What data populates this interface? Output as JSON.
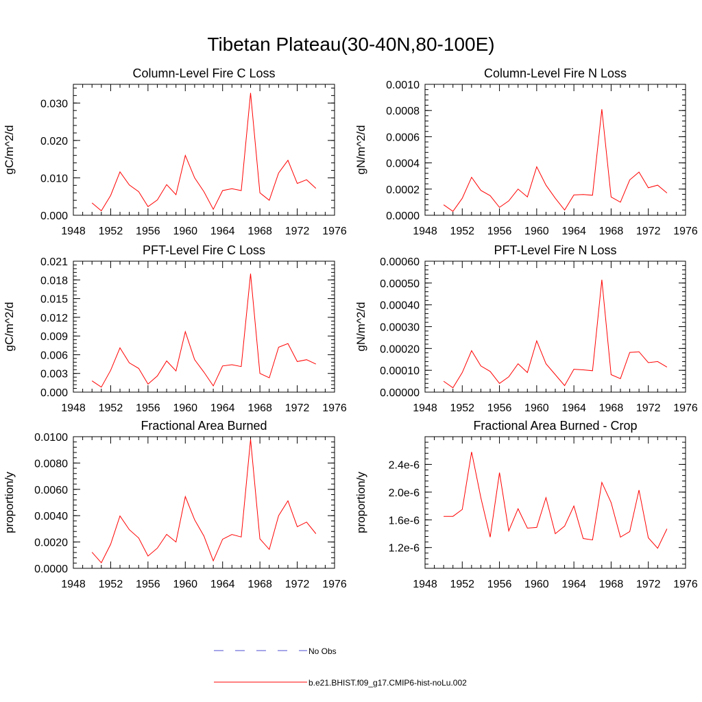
{
  "figure": {
    "title": "Tibetan Plateau(30-40N,80-100E)"
  },
  "colors": {
    "model_line": "#ff0000",
    "obs_line": "#4b4bd2",
    "axes": "#000000"
  },
  "legend": {
    "entries": [
      {
        "label": "No Obs",
        "style": "dashed",
        "color": "#4b4bd2"
      },
      {
        "label": "b.e21.BHIST.f09_g17.CMIP6-hist-noLu.002",
        "style": "solid",
        "color": "#ff0000"
      }
    ]
  },
  "chart_data": [
    {
      "type": "line",
      "title": "Column-Level Fire C Loss",
      "ylabel": "gC/m^2/d",
      "xlim": [
        1948,
        1976
      ],
      "ylim": [
        0,
        0.035
      ],
      "xticks": [
        1948,
        1952,
        1956,
        1960,
        1964,
        1968,
        1972,
        1976
      ],
      "yticks": [
        0,
        0.01,
        0.02,
        0.03
      ],
      "ytick_labels": [
        "0.000",
        "0.010",
        "0.020",
        "0.030"
      ],
      "x": [
        1950,
        1951,
        1952,
        1953,
        1954,
        1955,
        1956,
        1957,
        1958,
        1959,
        1960,
        1961,
        1962,
        1963,
        1964,
        1965,
        1966,
        1967,
        1968,
        1969,
        1970,
        1971,
        1972,
        1973,
        1974
      ],
      "series": [
        {
          "values": [
            0.0033,
            0.0012,
            0.0053,
            0.0116,
            0.0081,
            0.0063,
            0.0023,
            0.0041,
            0.0082,
            0.0055,
            0.016,
            0.01,
            0.0063,
            0.0016,
            0.0066,
            0.0071,
            0.0066,
            0.0327,
            0.006,
            0.004,
            0.0113,
            0.0147,
            0.0085,
            0.0095,
            0.0072
          ]
        }
      ]
    },
    {
      "type": "line",
      "title": "Column-Level Fire N Loss",
      "ylabel": "gN/m^2/d",
      "xlim": [
        1948,
        1976
      ],
      "ylim": [
        0,
        0.001
      ],
      "xticks": [
        1948,
        1952,
        1956,
        1960,
        1964,
        1968,
        1972,
        1976
      ],
      "yticks": [
        0,
        0.0002,
        0.0004,
        0.0006,
        0.0008,
        0.001
      ],
      "ytick_labels": [
        "0.0000",
        "0.0002",
        "0.0004",
        "0.0006",
        "0.0008",
        "0.0010"
      ],
      "x": [
        1950,
        1951,
        1952,
        1953,
        1954,
        1955,
        1956,
        1957,
        1958,
        1959,
        1960,
        1961,
        1962,
        1963,
        1964,
        1965,
        1966,
        1967,
        1968,
        1969,
        1970,
        1971,
        1972,
        1973,
        1974
      ],
      "series": [
        {
          "values": [
            8e-05,
            3e-05,
            0.00013,
            0.00029,
            0.00019,
            0.00015,
            6e-05,
            0.00011,
            0.0002,
            0.00014,
            0.00037,
            0.00023,
            0.00013,
            4e-05,
            0.000155,
            0.000158,
            0.000153,
            0.00081,
            0.00014,
            0.0001,
            0.00027,
            0.00033,
            0.00021,
            0.00023,
            0.00017
          ]
        }
      ]
    },
    {
      "type": "line",
      "title": "PFT-Level Fire C Loss",
      "ylabel": "gC/m^2/d",
      "xlim": [
        1948,
        1976
      ],
      "ylim": [
        0,
        0.021
      ],
      "xticks": [
        1948,
        1952,
        1956,
        1960,
        1964,
        1968,
        1972,
        1976
      ],
      "yticks": [
        0,
        0.003,
        0.006,
        0.009,
        0.012,
        0.015,
        0.018,
        0.021
      ],
      "ytick_labels": [
        "0.000",
        "0.003",
        "0.006",
        "0.009",
        "0.012",
        "0.015",
        "0.018",
        "0.021"
      ],
      "x": [
        1950,
        1951,
        1952,
        1953,
        1954,
        1955,
        1956,
        1957,
        1958,
        1959,
        1960,
        1961,
        1962,
        1963,
        1964,
        1965,
        1966,
        1967,
        1968,
        1969,
        1970,
        1971,
        1972,
        1973,
        1974
      ],
      "series": [
        {
          "values": [
            0.0018,
            0.0008,
            0.0035,
            0.0071,
            0.0047,
            0.0038,
            0.0013,
            0.0026,
            0.005,
            0.0034,
            0.0097,
            0.0052,
            0.0032,
            0.001,
            0.0042,
            0.0044,
            0.0041,
            0.019,
            0.003,
            0.0023,
            0.0072,
            0.0078,
            0.0049,
            0.0052,
            0.0045
          ]
        }
      ]
    },
    {
      "type": "line",
      "title": "PFT-Level Fire N Loss",
      "ylabel": "gN/m^2/d",
      "xlim": [
        1948,
        1976
      ],
      "ylim": [
        0,
        0.0006
      ],
      "xticks": [
        1948,
        1952,
        1956,
        1960,
        1964,
        1968,
        1972,
        1976
      ],
      "yticks": [
        0,
        0.0001,
        0.0002,
        0.0003,
        0.0004,
        0.0005,
        0.0006
      ],
      "ytick_labels": [
        "0.00000",
        "0.00010",
        "0.00020",
        "0.00030",
        "0.00040",
        "0.00050",
        "0.00060"
      ],
      "x": [
        1950,
        1951,
        1952,
        1953,
        1954,
        1955,
        1956,
        1957,
        1958,
        1959,
        1960,
        1961,
        1962,
        1963,
        1964,
        1965,
        1966,
        1967,
        1968,
        1969,
        1970,
        1971,
        1972,
        1973,
        1974
      ],
      "series": [
        {
          "values": [
            5e-05,
            2e-05,
            9e-05,
            0.00019,
            0.00012,
            9.5e-05,
            4e-05,
            7e-05,
            0.00013,
            9e-05,
            0.000235,
            0.00013,
            8e-05,
            3e-05,
            0.000105,
            0.000102,
            9.8e-05,
            0.000515,
            8e-05,
            6.2e-05,
            0.000182,
            0.000185,
            0.000135,
            0.00014,
            0.000115
          ]
        }
      ]
    },
    {
      "type": "line",
      "title": "Fractional Area Burned",
      "ylabel": "proportion/y",
      "xlim": [
        1948,
        1976
      ],
      "ylim": [
        0,
        0.01
      ],
      "xticks": [
        1948,
        1952,
        1956,
        1960,
        1964,
        1968,
        1972,
        1976
      ],
      "yticks": [
        0,
        0.002,
        0.004,
        0.006,
        0.008,
        0.01
      ],
      "ytick_labels": [
        "0.0000",
        "0.0020",
        "0.0040",
        "0.0060",
        "0.0080",
        "0.0100"
      ],
      "x": [
        1950,
        1951,
        1952,
        1953,
        1954,
        1955,
        1956,
        1957,
        1958,
        1959,
        1960,
        1961,
        1962,
        1963,
        1964,
        1965,
        1966,
        1967,
        1968,
        1969,
        1970,
        1971,
        1972,
        1973,
        1974
      ],
      "series": [
        {
          "values": [
            0.00122,
            0.00042,
            0.00183,
            0.00398,
            0.00294,
            0.0023,
            0.00093,
            0.00153,
            0.00258,
            0.002,
            0.00545,
            0.00369,
            0.00245,
            0.00057,
            0.00221,
            0.00257,
            0.00238,
            0.0098,
            0.00224,
            0.00144,
            0.004,
            0.00513,
            0.00316,
            0.00351,
            0.00263
          ]
        }
      ]
    },
    {
      "type": "line",
      "title": "Fractional Area Burned - Crop",
      "ylabel": "proportion/y",
      "xlim": [
        1948,
        1976
      ],
      "ylim": [
        9e-07,
        2.8e-06
      ],
      "xticks": [
        1948,
        1952,
        1956,
        1960,
        1964,
        1968,
        1972,
        1976
      ],
      "yticks": [
        1.2e-06,
        1.6e-06,
        2e-06,
        2.4e-06
      ],
      "ytick_labels": [
        "1.2e-6",
        "1.6e-6",
        "2.0e-6",
        "2.4e-6"
      ],
      "x": [
        1950,
        1951,
        1952,
        1953,
        1954,
        1955,
        1956,
        1957,
        1958,
        1959,
        1960,
        1961,
        1962,
        1963,
        1964,
        1965,
        1966,
        1967,
        1968,
        1969,
        1970,
        1971,
        1972,
        1973,
        1974
      ],
      "series": [
        {
          "values": [
            1.65e-06,
            1.65e-06,
            1.75e-06,
            2.58e-06,
            1.92e-06,
            1.35e-06,
            2.28e-06,
            1.44e-06,
            1.76e-06,
            1.48e-06,
            1.49e-06,
            1.92e-06,
            1.4e-06,
            1.51e-06,
            1.8e-06,
            1.33e-06,
            1.31e-06,
            2.14e-06,
            1.85e-06,
            1.35e-06,
            1.43e-06,
            2.03e-06,
            1.34e-06,
            1.19e-06,
            1.47e-06
          ]
        }
      ]
    }
  ]
}
